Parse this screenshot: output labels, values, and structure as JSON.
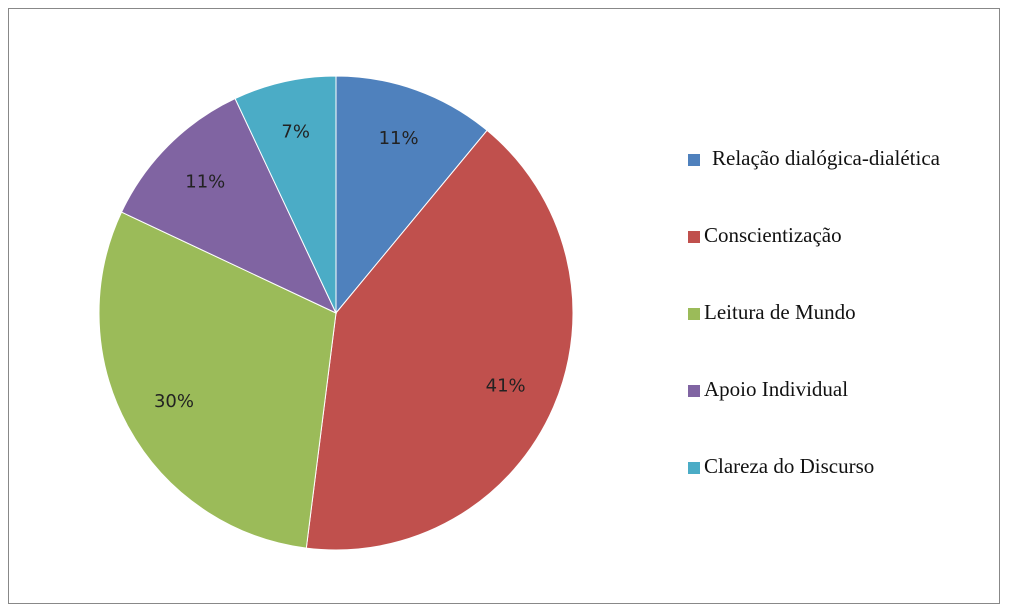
{
  "chart_data": {
    "type": "pie",
    "categories": [
      "Relação dialógica-dialética",
      "Conscientização",
      "Leitura de Mundo",
      "Apoio Individual",
      "Clareza do Discurso"
    ],
    "values": [
      11,
      41,
      30,
      11,
      7
    ],
    "value_labels": [
      "11%",
      "41%",
      "30%",
      "11%",
      "7%"
    ],
    "colors": [
      "#4f81bd",
      "#c0504d",
      "#9bbb59",
      "#8064a2",
      "#4bacc6"
    ],
    "legend": "right"
  }
}
